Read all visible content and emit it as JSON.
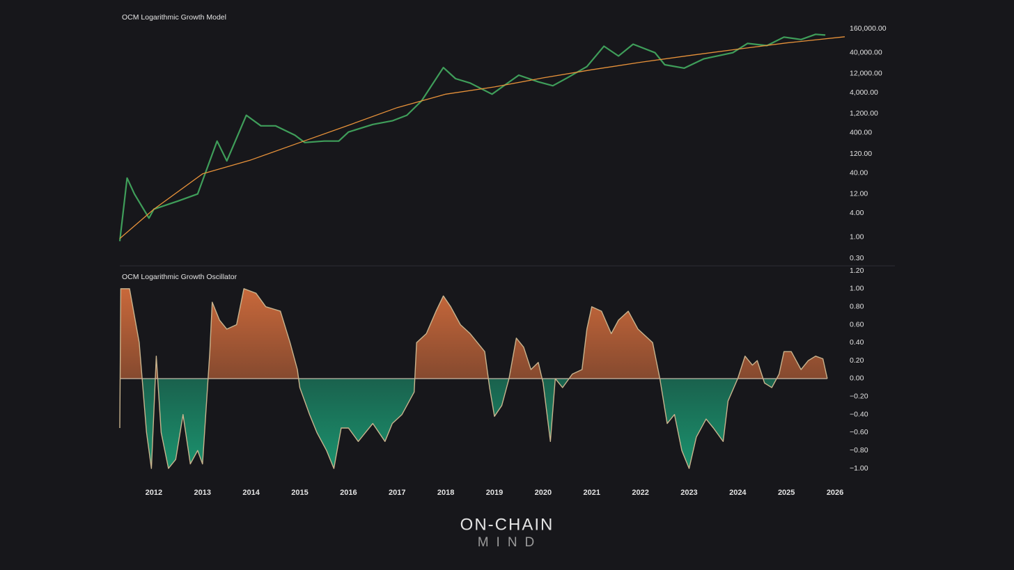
{
  "chart_data": [
    {
      "type": "line",
      "title": "OCM Logarithmic Growth Model",
      "log_y": true,
      "xlim": [
        2011.3,
        2027.23
      ],
      "ylim": [
        0.3,
        160000
      ],
      "yticks": [
        {
          "value": 0.3,
          "label": "0.30"
        },
        {
          "value": 1,
          "label": "1.00"
        },
        {
          "value": 4,
          "label": "4.00"
        },
        {
          "value": 12,
          "label": "12.00"
        },
        {
          "value": 40,
          "label": "40.00"
        },
        {
          "value": 120,
          "label": "120.00"
        },
        {
          "value": 400,
          "label": "400.00"
        },
        {
          "value": 1200,
          "label": "1,200.00"
        },
        {
          "value": 4000,
          "label": "4,000.00"
        },
        {
          "value": 12000,
          "label": "12,000.00"
        },
        {
          "value": 40000,
          "label": "40,000.00"
        },
        {
          "value": 160000,
          "label": "160,000.00"
        }
      ],
      "series": [
        {
          "color": "#3f9e5a",
          "x": [
            2011.3,
            2011.45,
            2011.6,
            2011.9,
            2012.0,
            2012.5,
            2012.9,
            2013.3,
            2013.5,
            2013.9,
            2014.2,
            2014.5,
            2014.9,
            2015.1,
            2015.5,
            2015.8,
            2016.0,
            2016.5,
            2016.9,
            2017.2,
            2017.5,
            2017.95,
            2018.2,
            2018.5,
            2018.95,
            2019.5,
            2019.9,
            2020.2,
            2020.5,
            2020.9,
            2021.25,
            2021.55,
            2021.85,
            2022.3,
            2022.5,
            2022.9,
            2023.3,
            2023.9,
            2024.2,
            2024.6,
            2024.95,
            2025.3,
            2025.6,
            2025.8
          ],
          "values": [
            0.8,
            30,
            12,
            3,
            5,
            8,
            12,
            250,
            80,
            1100,
            600,
            600,
            350,
            230,
            250,
            250,
            420,
            650,
            800,
            1100,
            2500,
            17000,
            9000,
            7000,
            3700,
            11000,
            7500,
            6000,
            9500,
            18000,
            58000,
            33000,
            65000,
            40000,
            20000,
            16500,
            28000,
            40000,
            68000,
            60000,
            98000,
            85000,
            115000,
            110000
          ]
        },
        {
          "color": "#e8923a",
          "x": [
            2011.3,
            2012,
            2013,
            2014,
            2015,
            2016,
            2017,
            2018,
            2019,
            2020,
            2021,
            2022,
            2023,
            2024,
            2025,
            2026.2
          ],
          "values": [
            0.93,
            5,
            38,
            85,
            230,
            620,
            1700,
            3700,
            5600,
            9400,
            15000,
            23000,
            34000,
            49000,
            70000,
            100000
          ]
        }
      ]
    },
    {
      "type": "area",
      "title": "OCM Logarithmic Growth Oscillator",
      "xlim": [
        2011.3,
        2027.23
      ],
      "ylim": [
        -1.1,
        1.2
      ],
      "xticks": [
        2012,
        2013,
        2014,
        2015,
        2016,
        2017,
        2018,
        2019,
        2020,
        2021,
        2022,
        2023,
        2024,
        2025,
        2026
      ],
      "yticks": [
        {
          "value": 1.2,
          "label": "1.20"
        },
        {
          "value": 1,
          "label": "1.00"
        },
        {
          "value": 0.8,
          "label": "0.80"
        },
        {
          "value": 0.6,
          "label": "0.60"
        },
        {
          "value": 0.4,
          "label": "0.40"
        },
        {
          "value": 0.2,
          "label": "0.20"
        },
        {
          "value": 0,
          "label": "0.00"
        },
        {
          "value": -0.2,
          "label": "−0.20"
        },
        {
          "value": -0.4,
          "label": "−0.40"
        },
        {
          "value": -0.6,
          "label": "−0.60"
        },
        {
          "value": -0.8,
          "label": "−0.80"
        },
        {
          "value": -1,
          "label": "−1.00"
        }
      ],
      "line_color": "#c9b48e",
      "positive_color": "#e0733f",
      "negative_color": "#1c9e76",
      "x": [
        2011.3,
        2011.32,
        2011.5,
        2011.7,
        2011.85,
        2011.95,
        2012.05,
        2012.15,
        2012.3,
        2012.45,
        2012.6,
        2012.75,
        2012.9,
        2013.0,
        2013.15,
        2013.2,
        2013.35,
        2013.5,
        2013.7,
        2013.85,
        2014.1,
        2014.3,
        2014.6,
        2014.8,
        2014.95,
        2015.0,
        2015.2,
        2015.35,
        2015.55,
        2015.7,
        2015.85,
        2016.0,
        2016.2,
        2016.35,
        2016.5,
        2016.75,
        2016.9,
        2017.1,
        2017.35,
        2017.4,
        2017.6,
        2017.8,
        2017.95,
        2018.1,
        2018.3,
        2018.5,
        2018.8,
        2018.9,
        2019.0,
        2019.15,
        2019.3,
        2019.45,
        2019.6,
        2019.75,
        2019.9,
        2020.0,
        2020.15,
        2020.25,
        2020.4,
        2020.6,
        2020.8,
        2020.9,
        2021.0,
        2021.2,
        2021.4,
        2021.55,
        2021.75,
        2021.95,
        2022.25,
        2022.4,
        2022.55,
        2022.7,
        2022.85,
        2023.0,
        2023.15,
        2023.35,
        2023.5,
        2023.7,
        2023.8,
        2024.0,
        2024.15,
        2024.3,
        2024.4,
        2024.55,
        2024.7,
        2024.85,
        2024.95,
        2025.1,
        2025.3,
        2025.45,
        2025.6,
        2025.75,
        2025.84
      ],
      "values": [
        -0.55,
        1.0,
        1.0,
        0.4,
        -0.6,
        -1.0,
        0.25,
        -0.6,
        -1.0,
        -0.9,
        -0.4,
        -0.95,
        -0.8,
        -0.95,
        0.3,
        0.85,
        0.65,
        0.55,
        0.6,
        1.0,
        0.95,
        0.8,
        0.75,
        0.4,
        0.1,
        -0.1,
        -0.4,
        -0.6,
        -0.8,
        -1.0,
        -0.55,
        -0.55,
        -0.7,
        -0.6,
        -0.5,
        -0.7,
        -0.5,
        -0.4,
        -0.15,
        0.4,
        0.5,
        0.75,
        0.92,
        0.8,
        0.6,
        0.5,
        0.3,
        -0.1,
        -0.42,
        -0.3,
        0.0,
        0.45,
        0.35,
        0.1,
        0.18,
        -0.05,
        -0.7,
        0.0,
        -0.1,
        0.05,
        0.1,
        0.55,
        0.8,
        0.75,
        0.5,
        0.65,
        0.75,
        0.55,
        0.4,
        0.0,
        -0.5,
        -0.4,
        -0.8,
        -1.0,
        -0.65,
        -0.45,
        -0.55,
        -0.7,
        -0.25,
        0.0,
        0.25,
        0.15,
        0.2,
        -0.05,
        -0.1,
        0.05,
        0.3,
        0.3,
        0.1,
        0.2,
        0.25,
        0.22,
        0.0
      ]
    }
  ],
  "logo": {
    "line1": "ON-CHAIN",
    "line2": "MIND"
  }
}
